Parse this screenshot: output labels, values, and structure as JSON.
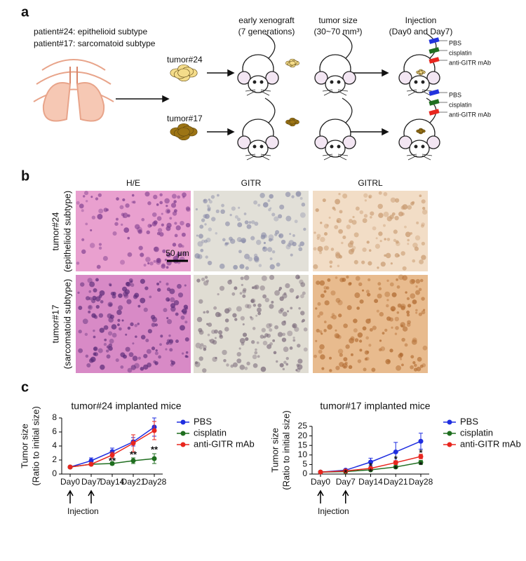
{
  "panel_labels": [
    "a",
    "b",
    "c"
  ],
  "schematic": {
    "patients": [
      "patient#24: epithelioid subtype",
      "patient#17: sarcomatoid subtype"
    ],
    "tumors": [
      "tumor#24",
      "tumor#17"
    ],
    "steps": [
      {
        "title": "early xenograft",
        "subtitle": "(7 generations)"
      },
      {
        "title": "tumor size",
        "subtitle": "(30~70 mm³)"
      },
      {
        "title": "Injection",
        "subtitle": "(Day0 and Day7)"
      }
    ],
    "treatments": [
      [
        "PBS",
        "cisplatin",
        "anti-GITR mAb"
      ],
      [
        "PBS",
        "cisplatin",
        "anti-GITR mAb"
      ]
    ]
  },
  "histology": {
    "columns": [
      "H/E",
      "GITR",
      "GITRL"
    ],
    "rows": [
      {
        "title": "tumor#24",
        "subtitle": "(epithelioid subtype)"
      },
      {
        "title": "tumor#17",
        "subtitle": "(sarcomatoid subtype)"
      }
    ],
    "scale_bar": "50 μm"
  },
  "chart_data": [
    {
      "type": "line",
      "title": "tumor#24 implanted mice",
      "ylabel": "Tumor size",
      "ylabel2": "(Ratio to initial size)",
      "categories": [
        "Day0",
        "Day7",
        "Day14",
        "Day21",
        "Day28"
      ],
      "ylim": [
        0,
        8
      ],
      "yticks": [
        0,
        2,
        4,
        6,
        8
      ],
      "series": [
        {
          "name": "PBS",
          "color": "#1f2ee0",
          "values": [
            1,
            1.9,
            3.2,
            4.6,
            6.7
          ],
          "errors": [
            0,
            0.4,
            0.5,
            0.6,
            1.3
          ]
        },
        {
          "name": "cisplatin",
          "color": "#1f6e1f",
          "values": [
            1,
            1.4,
            1.5,
            1.9,
            2.2
          ],
          "errors": [
            0,
            0.1,
            0.2,
            0.4,
            0.7
          ]
        },
        {
          "name": "anti-GITR mAb",
          "color": "#e8261e",
          "values": [
            1,
            1.4,
            2.7,
            4.4,
            6.2
          ],
          "errors": [
            0,
            0.1,
            0.4,
            1.2,
            1.3
          ]
        }
      ],
      "annotations": [
        {
          "text": "**",
          "category": "Day14",
          "y": 1.8,
          "color": "#1f6e1f"
        },
        {
          "text": "**",
          "category": "Day21",
          "y": 2.7,
          "color": "#1f6e1f"
        },
        {
          "text": "**",
          "category": "Day28",
          "y": 3.4,
          "color": "#1f6e1f"
        }
      ],
      "injection": {
        "label": "Injection",
        "categories": [
          "Day0",
          "Day7"
        ]
      }
    },
    {
      "type": "line",
      "title": "tumor#17 implanted mice",
      "ylabel": "Tumor size",
      "ylabel2": "(Ratio to initial size)",
      "categories": [
        "Day0",
        "Day7",
        "Day14",
        "Day21",
        "Day28"
      ],
      "ylim": [
        0,
        25
      ],
      "yticks": [
        0,
        5,
        10,
        15,
        20,
        25
      ],
      "series": [
        {
          "name": "PBS",
          "color": "#1f2ee0",
          "values": [
            1,
            2,
            6.3,
            11.6,
            17.2
          ],
          "errors": [
            0,
            0.3,
            2,
            5,
            4.2
          ]
        },
        {
          "name": "cisplatin",
          "color": "#1f6e1f",
          "values": [
            1,
            1.3,
            2.2,
            3.7,
            6.1
          ],
          "errors": [
            0,
            0.2,
            0.3,
            0.6,
            1
          ]
        },
        {
          "name": "anti-GITR mAb",
          "color": "#e8261e",
          "values": [
            1,
            1.6,
            3,
            6,
            9.2
          ],
          "errors": [
            0,
            0.2,
            0.5,
            1,
            1.2
          ]
        }
      ],
      "annotations": [
        {
          "text": "*",
          "category": "Day14",
          "y": 3.8,
          "color": "#e8261e"
        },
        {
          "text": "*",
          "category": "Day21",
          "y": 7.6,
          "color": "#e8261e"
        },
        {
          "text": "*",
          "category": "Day28",
          "y": 10.9,
          "color": "#e8261e"
        },
        {
          "text": "*",
          "category": "Day7",
          "y": 0.3,
          "color": "#1f6e1f"
        },
        {
          "text": "*",
          "category": "Day14",
          "y": 0.9,
          "color": "#1f6e1f"
        },
        {
          "text": "*",
          "category": "Day21",
          "y": 2.4,
          "color": "#1f6e1f"
        },
        {
          "text": "*",
          "category": "Day28",
          "y": 4.3,
          "color": "#1f6e1f"
        }
      ],
      "injection": {
        "label": "Injection",
        "categories": [
          "Day0",
          "Day7"
        ]
      }
    }
  ]
}
